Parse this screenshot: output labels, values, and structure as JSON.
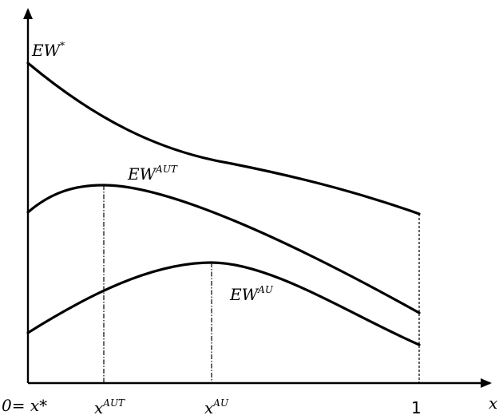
{
  "curves": {
    "ew_star": {
      "base": "EW",
      "sup": "*"
    },
    "ew_aut": {
      "base": "EW",
      "sup": "AUT"
    },
    "ew_au": {
      "base": "EW",
      "sup": "AU"
    }
  },
  "x_axis": {
    "label": "x",
    "ticks": {
      "origin": "0= x*",
      "x_aut_base": "x",
      "x_aut_sup": "AUT",
      "x_au_base": "x",
      "x_au_sup": "AU",
      "one": "1"
    }
  }
}
